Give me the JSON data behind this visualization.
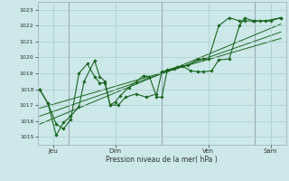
{
  "background_color": "#cce8e8",
  "grid_color": "#aacccc",
  "line_color": "#1a6620",
  "xlabel": "Pression niveau de la mer( hPa )",
  "ylim": [
    1014.5,
    1023.5
  ],
  "yticks": [
    1015,
    1016,
    1017,
    1018,
    1019,
    1020,
    1021,
    1022,
    1023
  ],
  "xlim": [
    0,
    24
  ],
  "day_positions": [
    1.5,
    7.5,
    16.5,
    22.5
  ],
  "day_labels": [
    "Jeu",
    "Dim",
    "Ven",
    "Sam"
  ],
  "vline_positions": [
    3,
    12,
    21
  ],
  "s1x": [
    0.2,
    1.0,
    1.8,
    2.5,
    3.2,
    4.0,
    4.8,
    5.5,
    6.0,
    6.5,
    7.0,
    7.5,
    8.0,
    8.8,
    9.5,
    10.2,
    10.8,
    11.5,
    12.0,
    12.5,
    13.2,
    14.0,
    14.8,
    15.5,
    16.0,
    16.8,
    17.5,
    18.5,
    19.5,
    20.0,
    20.8,
    21.5,
    22.5,
    23.5
  ],
  "s1y": [
    1018.0,
    1017.1,
    1015.8,
    1015.5,
    1016.1,
    1019.0,
    1019.6,
    1018.8,
    1018.4,
    1018.4,
    1017.0,
    1017.2,
    1017.6,
    1018.1,
    1018.45,
    1018.85,
    1018.8,
    1017.5,
    1017.5,
    1019.15,
    1019.3,
    1019.45,
    1019.15,
    1019.1,
    1019.1,
    1019.15,
    1019.85,
    1019.9,
    1022.0,
    1022.5,
    1022.3,
    1022.3,
    1022.3,
    1022.5
  ],
  "s2x": [
    0.2,
    1.0,
    1.8,
    2.5,
    3.2,
    4.0,
    4.5,
    5.5,
    6.0,
    6.5,
    7.0,
    7.8,
    8.5,
    9.5,
    10.5,
    11.5,
    12.0,
    12.5,
    13.5,
    14.5,
    15.5,
    16.0,
    16.5,
    17.5,
    18.5,
    19.5,
    20.0,
    21.0,
    22.0,
    23.5
  ],
  "s2y": [
    1018.0,
    1017.1,
    1015.1,
    1015.9,
    1016.3,
    1016.9,
    1018.5,
    1019.8,
    1018.8,
    1018.5,
    1017.0,
    1017.0,
    1017.5,
    1017.7,
    1017.5,
    1017.7,
    1019.1,
    1019.2,
    1019.4,
    1019.5,
    1019.9,
    1019.9,
    1019.9,
    1022.0,
    1022.5,
    1022.3,
    1022.3,
    1022.3,
    1022.3,
    1022.5
  ],
  "trend_lines": [
    {
      "x": [
        0.2,
        23.5
      ],
      "y": [
        1016.8,
        1021.2
      ]
    },
    {
      "x": [
        0.2,
        23.5
      ],
      "y": [
        1016.3,
        1021.6
      ]
    },
    {
      "x": [
        0.2,
        23.5
      ],
      "y": [
        1015.8,
        1022.1
      ]
    }
  ]
}
